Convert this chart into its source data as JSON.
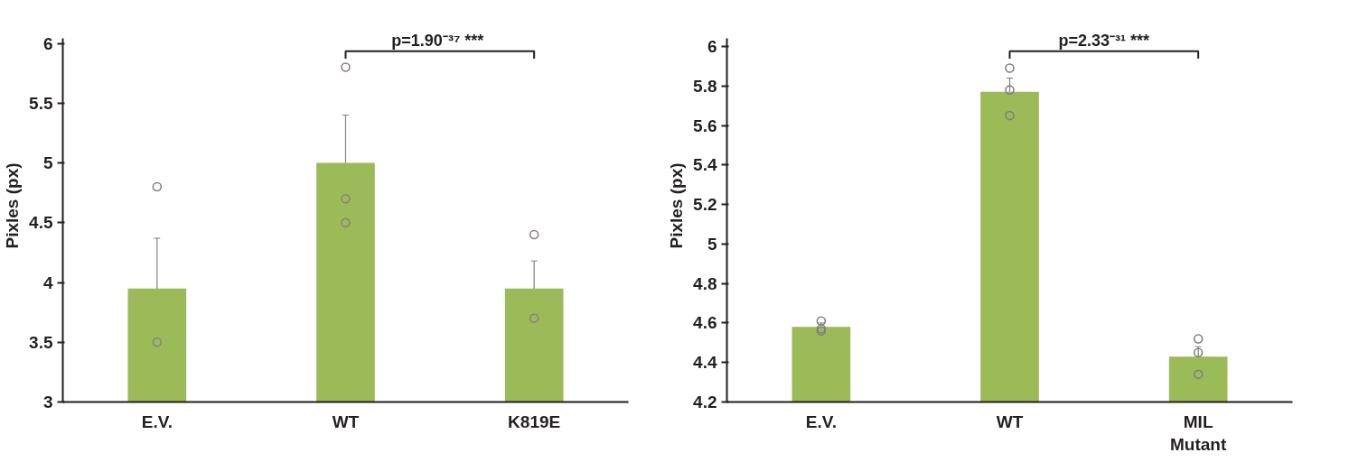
{
  "chart_data": [
    {
      "type": "bar",
      "ylabel": "Pixles (px)",
      "categories": [
        "E.V.",
        "WT",
        "K819E"
      ],
      "ylim": [
        3,
        6.04
      ],
      "yticks": [
        3,
        3.5,
        4,
        4.5,
        5,
        5.5,
        6
      ],
      "series": [
        {
          "color": "#9bbb59",
          "values": [
            3.95,
            5.0,
            3.95
          ],
          "errors": [
            0.42,
            0.4,
            0.23
          ]
        },
        {
          "type": "scatter",
          "color": "#8c8080",
          "marker": "circle",
          "x": [
            "E.V.",
            "E.V.",
            "WT",
            "WT",
            "WT",
            "K819E",
            "K819E"
          ],
          "values": [
            4.8,
            3.5,
            5.8,
            4.7,
            4.5,
            4.4,
            3.7
          ]
        }
      ],
      "annotations": [
        "p=1.90⁻³⁷  ***"
      ]
    },
    {
      "type": "bar",
      "ylabel": "Pixles (px)",
      "categories": [
        "E.V.",
        "WT",
        "MIL Mutant"
      ],
      "ylim": [
        4.2,
        6.04
      ],
      "yticks": [
        4.2,
        4.4,
        4.6,
        4.8,
        5,
        5.2,
        5.4,
        5.6,
        5.8,
        6
      ],
      "series": [
        {
          "color": "#9bbb59",
          "values": [
            4.58,
            5.77,
            4.43
          ],
          "errors": [
            0.02,
            0.07,
            0.05
          ]
        },
        {
          "type": "scatter",
          "color": "#808080",
          "marker": "circle",
          "x": [
            "E.V.",
            "E.V.",
            "E.V.",
            "WT",
            "WT",
            "WT",
            "MIL Mutant",
            "MIL Mutant",
            "MIL Mutant"
          ],
          "values": [
            4.61,
            4.57,
            4.56,
            5.89,
            5.78,
            5.65,
            4.52,
            4.45,
            4.34
          ]
        }
      ],
      "annotations": [
        "p=2.33⁻³¹ ***"
      ]
    }
  ]
}
